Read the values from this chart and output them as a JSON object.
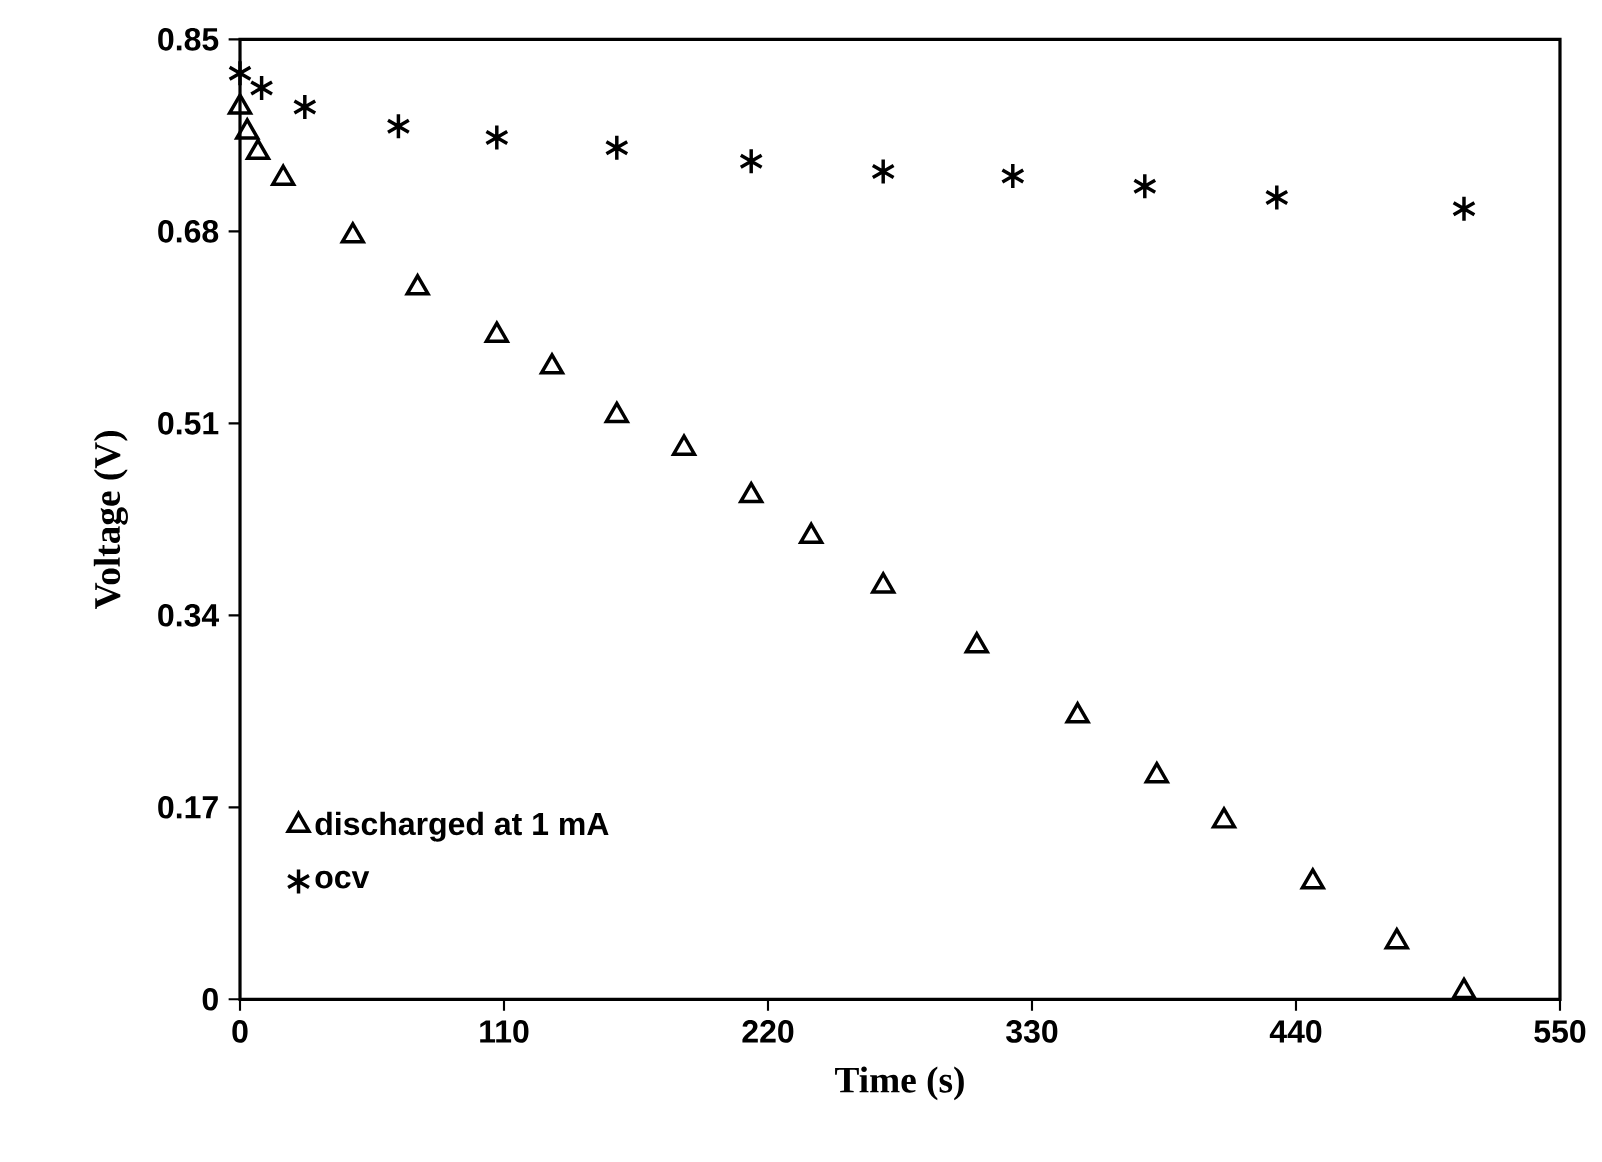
{
  "chart_data": {
    "type": "scatter",
    "xlabel": "Time (s)",
    "ylabel": "Voltage (V)",
    "xlim": [
      0,
      550
    ],
    "xticks": [
      0,
      110,
      220,
      330,
      440,
      550
    ],
    "ylim": [
      0,
      0.85
    ],
    "yticks": [
      0,
      0.17,
      0.34,
      0.51,
      0.68,
      0.85
    ],
    "legend": "bottom left",
    "grid": false,
    "series": [
      {
        "name": "discharged at 1 mA",
        "color": "#000000",
        "marker": "triangle",
        "x": [
          0,
          3,
          7.5,
          18,
          47,
          74,
          107,
          130,
          157,
          185,
          213,
          238,
          268,
          307,
          349,
          382,
          410,
          447,
          482,
          510
        ],
        "values": [
          0.79,
          0.768,
          0.75,
          0.727,
          0.676,
          0.63,
          0.588,
          0.56,
          0.517,
          0.488,
          0.446,
          0.41,
          0.366,
          0.313,
          0.251,
          0.198,
          0.158,
          0.104,
          0.051,
          0.007
        ]
      },
      {
        "name": "ocv",
        "color": "#000000",
        "marker": "cross",
        "x": [
          0,
          9,
          27,
          66,
          107,
          157,
          213,
          268,
          322,
          377,
          432,
          510
        ],
        "values": [
          0.82,
          0.807,
          0.79,
          0.773,
          0.763,
          0.754,
          0.742,
          0.733,
          0.729,
          0.72,
          0.71,
          0.7
        ]
      }
    ]
  }
}
